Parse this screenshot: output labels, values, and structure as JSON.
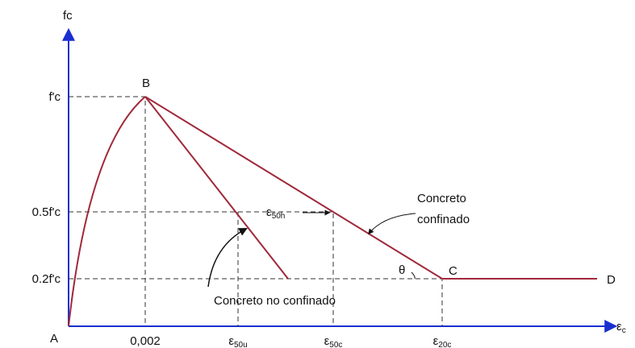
{
  "axes": {
    "y_label": "fc",
    "x_label": {
      "symbol": "ε",
      "sub": "c"
    }
  },
  "y_levels": [
    "f'c",
    "0.5f'c",
    "0.2f'c"
  ],
  "x_levels": [
    {
      "symbol": "0,002",
      "sub": ""
    },
    {
      "symbol": "ε",
      "sub": "50u"
    },
    {
      "symbol": "ε",
      "sub": "50c"
    },
    {
      "symbol": "ε",
      "sub": "20c"
    }
  ],
  "points": [
    "A",
    "B",
    "C",
    "D"
  ],
  "annotations": {
    "span": {
      "symbol": "ε",
      "sub": "50h"
    },
    "angle": "θ",
    "confined": [
      "Concreto",
      "confinado"
    ],
    "unconfined": "Concreto no confinado"
  }
}
